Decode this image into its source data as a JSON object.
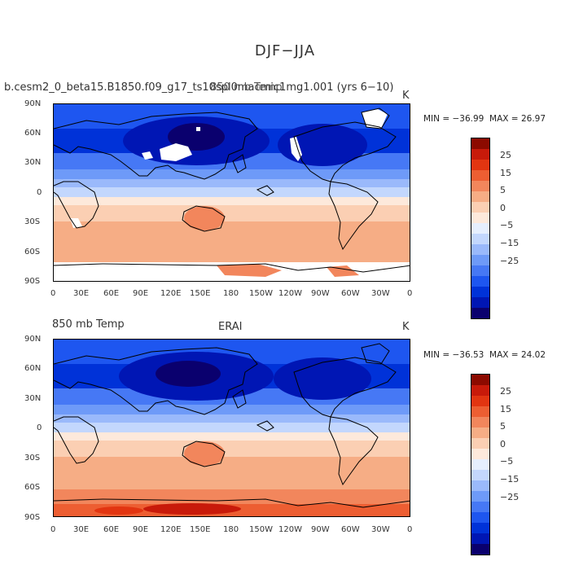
{
  "title": "DJF−JJA",
  "colorbar_colors": [
    "#0a006e",
    "#0016b4",
    "#0032d8",
    "#1e56f0",
    "#4678f5",
    "#6e9af8",
    "#9ab9fb",
    "#c3d7fd",
    "#e6effe",
    "#fde9db",
    "#fbcfb3",
    "#f6ad85",
    "#f2865c",
    "#ed5e32",
    "#e23511",
    "#c81a0a",
    "#8c0a00"
  ],
  "colorbar_labels": [
    "25",
    "15",
    "5",
    "0",
    "−5",
    "−15",
    "−25"
  ],
  "lat_labels": [
    "90N",
    "60N",
    "30N",
    "0",
    "30S",
    "60S",
    "90S"
  ],
  "lon_labels": [
    "0",
    "30E",
    "60E",
    "90E",
    "120E",
    "150E",
    "180",
    "150W",
    "120W",
    "90W",
    "60W",
    "30W",
    "0"
  ],
  "panels": [
    {
      "left_label": "b.cesm2_0_beta15.B1850.f09_g17_ts10spl0macmic1mg1.001 (yrs 6−10)",
      "overlay_label": "850 mb Temp",
      "center_label": "",
      "units": "K",
      "min": "−36.99",
      "max": "26.97"
    },
    {
      "left_label": "850 mb Temp",
      "overlay_label": "",
      "center_label": "ERAI",
      "units": "K",
      "min": "−36.53",
      "max": "24.02"
    }
  ],
  "stat_prefix_min": "MIN = ",
  "stat_prefix_max": "MAX = "
}
